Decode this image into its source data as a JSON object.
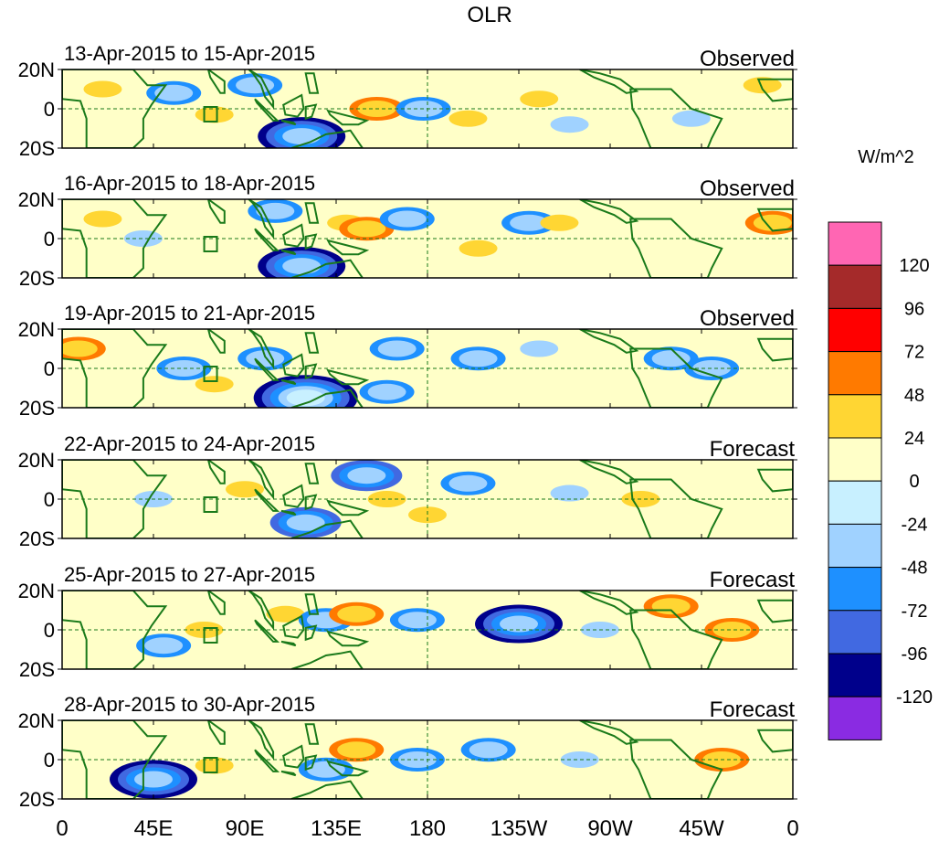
{
  "chart_data": {
    "type": "heatmap",
    "title": "OLR",
    "y_tick_labels": [
      "20N",
      "0",
      "20S"
    ],
    "x_tick_labels": [
      "0",
      "45E",
      "90E",
      "135E",
      "180",
      "135W",
      "90W",
      "45W",
      "0"
    ],
    "xlim": [
      0,
      360
    ],
    "ylim": [
      -20,
      20
    ],
    "colorbar": {
      "unit": "W/m^2",
      "levels": [
        "120",
        "96",
        "72",
        "48",
        "24",
        "0",
        "-24",
        "-48",
        "-72",
        "-96",
        "-120"
      ],
      "colors": [
        "#ff66b3",
        "#a52a2a",
        "#ff0000",
        "#ff7a00",
        "#ffd633",
        "#ffffc8",
        "#c8f0ff",
        "#a0d2ff",
        "#1e90ff",
        "#4169e1",
        "#00008b",
        "#8a2be2"
      ]
    },
    "panels": [
      {
        "date_range": "13-Apr-2015 to 15-Apr-2015",
        "kind": "Observed"
      },
      {
        "date_range": "16-Apr-2015 to 18-Apr-2015",
        "kind": "Observed"
      },
      {
        "date_range": "19-Apr-2015 to 21-Apr-2015",
        "kind": "Observed"
      },
      {
        "date_range": "22-Apr-2015 to 24-Apr-2015",
        "kind": "Forecast"
      },
      {
        "date_range": "25-Apr-2015 to 27-Apr-2015",
        "kind": "Forecast"
      },
      {
        "date_range": "28-Apr-2015 to 30-Apr-2015",
        "kind": "Forecast"
      }
    ],
    "anomalies": [
      [
        {
          "lon": 20,
          "lat": 10,
          "value": 30
        },
        {
          "lon": 55,
          "lat": 8,
          "value": -50
        },
        {
          "lon": 95,
          "lat": 12,
          "value": -70
        },
        {
          "lon": 118,
          "lat": -14,
          "value": -110
        },
        {
          "lon": 75,
          "lat": -3,
          "value": 30
        },
        {
          "lon": 155,
          "lat": 0,
          "value": 50
        },
        {
          "lon": 178,
          "lat": 0,
          "value": -60
        },
        {
          "lon": 200,
          "lat": -5,
          "value": 35
        },
        {
          "lon": 235,
          "lat": 5,
          "value": 35
        },
        {
          "lon": 250,
          "lat": -8,
          "value": -30
        },
        {
          "lon": 310,
          "lat": -5,
          "value": -30
        },
        {
          "lon": 345,
          "lat": 12,
          "value": 30
        }
      ],
      [
        {
          "lon": 20,
          "lat": 10,
          "value": 35
        },
        {
          "lon": 40,
          "lat": 0,
          "value": -40
        },
        {
          "lon": 118,
          "lat": -14,
          "value": -100
        },
        {
          "lon": 105,
          "lat": 14,
          "value": -50
        },
        {
          "lon": 140,
          "lat": 8,
          "value": 35
        },
        {
          "lon": 150,
          "lat": 5,
          "value": 55
        },
        {
          "lon": 170,
          "lat": 10,
          "value": -50
        },
        {
          "lon": 205,
          "lat": -5,
          "value": 30
        },
        {
          "lon": 230,
          "lat": 8,
          "value": -50
        },
        {
          "lon": 245,
          "lat": 8,
          "value": 45
        },
        {
          "lon": 350,
          "lat": 8,
          "value": 60
        }
      ],
      [
        {
          "lon": 8,
          "lat": 10,
          "value": 60
        },
        {
          "lon": 60,
          "lat": 0,
          "value": -50
        },
        {
          "lon": 100,
          "lat": 5,
          "value": -50
        },
        {
          "lon": 75,
          "lat": -8,
          "value": 30
        },
        {
          "lon": 120,
          "lat": -15,
          "value": -120
        },
        {
          "lon": 160,
          "lat": -12,
          "value": -70
        },
        {
          "lon": 165,
          "lat": 10,
          "value": -60
        },
        {
          "lon": 205,
          "lat": 5,
          "value": -50
        },
        {
          "lon": 235,
          "lat": 10,
          "value": -45
        },
        {
          "lon": 300,
          "lat": 5,
          "value": -50
        },
        {
          "lon": 320,
          "lat": 0,
          "value": -60
        }
      ],
      [
        {
          "lon": 45,
          "lat": 0,
          "value": -40
        },
        {
          "lon": 90,
          "lat": 5,
          "value": 30
        },
        {
          "lon": 120,
          "lat": -12,
          "value": -80
        },
        {
          "lon": 150,
          "lat": 12,
          "value": -90
        },
        {
          "lon": 160,
          "lat": 0,
          "value": 40
        },
        {
          "lon": 180,
          "lat": -8,
          "value": 30
        },
        {
          "lon": 200,
          "lat": 8,
          "value": -70
        },
        {
          "lon": 250,
          "lat": 3,
          "value": -30
        },
        {
          "lon": 285,
          "lat": 0,
          "value": 25
        }
      ],
      [
        {
          "lon": 50,
          "lat": -8,
          "value": -70
        },
        {
          "lon": 70,
          "lat": 0,
          "value": 40
        },
        {
          "lon": 110,
          "lat": 8,
          "value": 35
        },
        {
          "lon": 130,
          "lat": 5,
          "value": -70
        },
        {
          "lon": 145,
          "lat": 8,
          "value": 50
        },
        {
          "lon": 175,
          "lat": 5,
          "value": -60
        },
        {
          "lon": 225,
          "lat": 3,
          "value": -110
        },
        {
          "lon": 265,
          "lat": 0,
          "value": -40
        },
        {
          "lon": 300,
          "lat": 12,
          "value": 55
        },
        {
          "lon": 330,
          "lat": 0,
          "value": 55
        }
      ],
      [
        {
          "lon": 45,
          "lat": -10,
          "value": -110
        },
        {
          "lon": 75,
          "lat": -3,
          "value": 35
        },
        {
          "lon": 130,
          "lat": -5,
          "value": -70
        },
        {
          "lon": 145,
          "lat": 5,
          "value": 50
        },
        {
          "lon": 175,
          "lat": 0,
          "value": -60
        },
        {
          "lon": 210,
          "lat": 5,
          "value": -70
        },
        {
          "lon": 255,
          "lat": 0,
          "value": -40
        },
        {
          "lon": 325,
          "lat": 0,
          "value": 50
        }
      ]
    ]
  }
}
